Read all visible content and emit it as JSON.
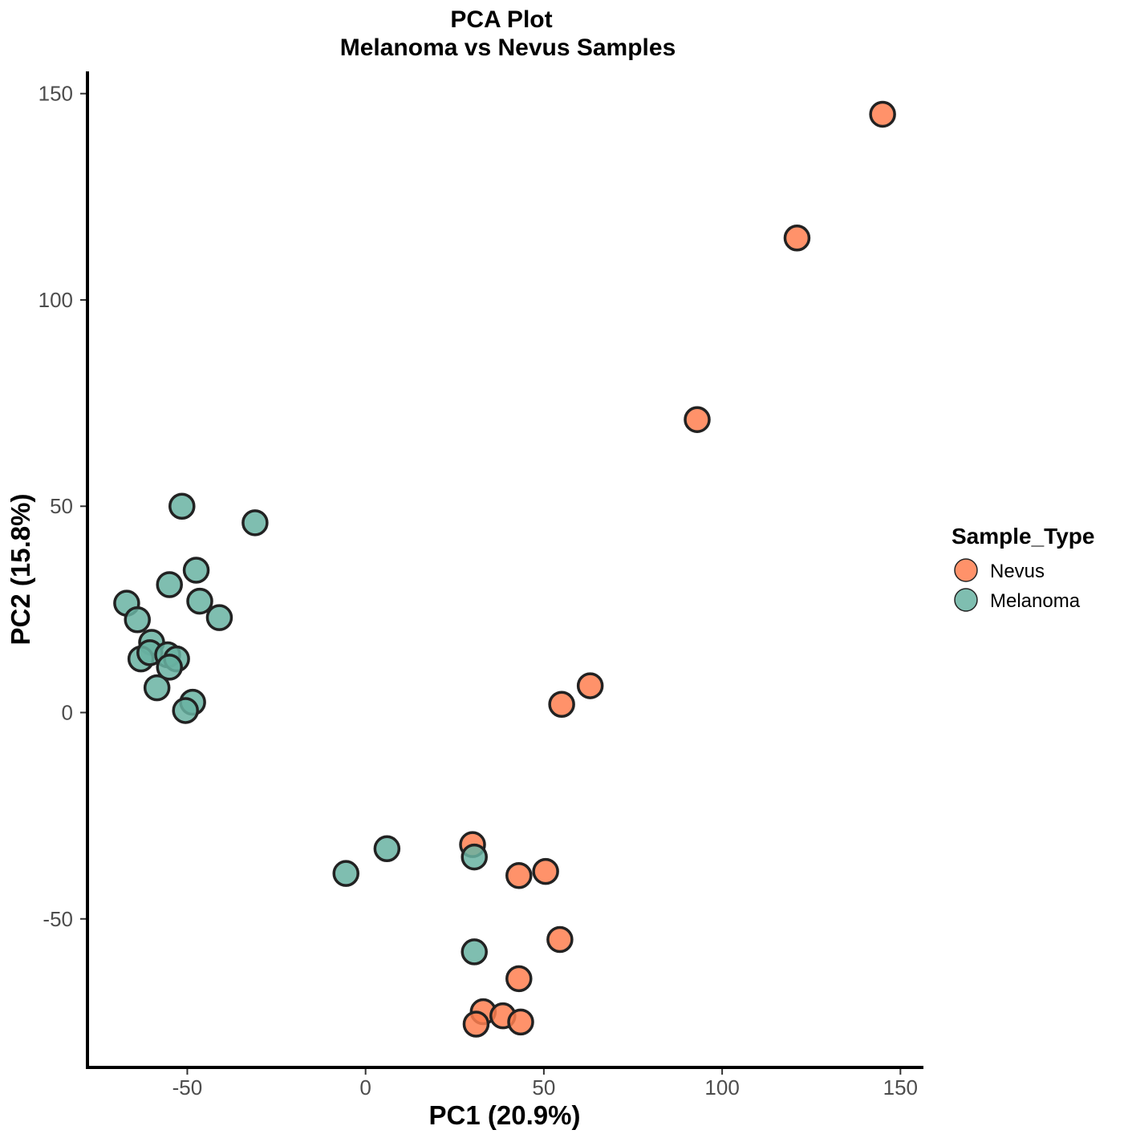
{
  "chart_data": {
    "type": "scatter",
    "title": "PCA Plot",
    "subtitle": "Melanoma vs Nevus Samples",
    "xlabel": "PC1 (20.9%)",
    "ylabel": "PC2 (15.8%)",
    "xlim": [
      -78,
      156
    ],
    "ylim": [
      -86,
      155
    ],
    "xticks": [
      -50,
      0,
      50,
      100,
      150
    ],
    "yticks": [
      -50,
      0,
      50,
      100,
      150
    ],
    "xtick_labels": [
      "-50",
      "0",
      "50",
      "100",
      "150"
    ],
    "ytick_labels": [
      "-50",
      "0",
      "50",
      "100",
      "150"
    ],
    "grid": false,
    "legend": {
      "title": "Sample_Type",
      "position": "right"
    },
    "series": [
      {
        "name": "Nevus",
        "color": "#FF7F50",
        "points": [
          [
            145,
            145
          ],
          [
            121,
            115
          ],
          [
            93,
            71
          ],
          [
            63,
            6.5
          ],
          [
            55,
            2
          ],
          [
            30,
            -32
          ],
          [
            43,
            -39.5
          ],
          [
            50.5,
            -38.5
          ],
          [
            54.5,
            -55
          ],
          [
            43,
            -64.5
          ],
          [
            33,
            -72.5
          ],
          [
            38.5,
            -73.5
          ],
          [
            43.5,
            -75
          ],
          [
            31,
            -75.5
          ]
        ]
      },
      {
        "name": "Melanoma",
        "color": "#69B3A2",
        "points": [
          [
            -51.5,
            50
          ],
          [
            -31,
            46
          ],
          [
            -47.5,
            34.5
          ],
          [
            -55,
            31
          ],
          [
            -46.5,
            27
          ],
          [
            -67,
            26.5
          ],
          [
            -64,
            22.5
          ],
          [
            -41,
            23
          ],
          [
            -60,
            17
          ],
          [
            -63,
            13
          ],
          [
            -60.5,
            14.5
          ],
          [
            -55.5,
            14
          ],
          [
            -53,
            13
          ],
          [
            -55,
            11
          ],
          [
            -58.5,
            6
          ],
          [
            -48.5,
            2.5
          ],
          [
            -50.5,
            0.5
          ],
          [
            6,
            -33
          ],
          [
            -5.5,
            -39
          ],
          [
            30.5,
            -35
          ],
          [
            30.5,
            -58
          ]
        ]
      }
    ]
  }
}
